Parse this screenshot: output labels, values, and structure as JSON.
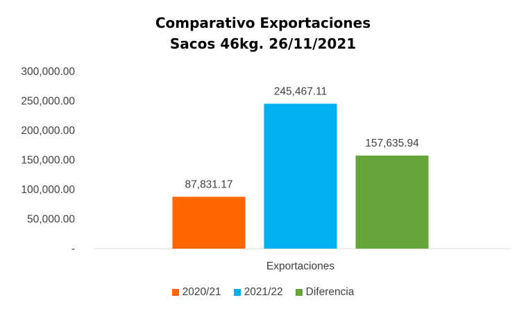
{
  "chart_data": {
    "type": "bar",
    "title": "Comparativo  Exportaciones",
    "subtitle": "Sacos 46kg. 26/11/2021",
    "categories": [
      "Exportaciones"
    ],
    "series": [
      {
        "name": "2020/21",
        "values": [
          87831.17
        ],
        "label": "87,831.17",
        "color": "#FF6600"
      },
      {
        "name": "2021/22",
        "values": [
          245467.11
        ],
        "label": "245,467.11",
        "color": "#00B0F0"
      },
      {
        "name": "Diferencia",
        "values": [
          157635.94
        ],
        "label": "157,635.94",
        "color": "#66A53A"
      }
    ],
    "ylim": [
      0,
      300000
    ],
    "yticks": [
      0,
      50000,
      100000,
      150000,
      200000,
      250000,
      300000
    ],
    "ytick_labels": [
      "-",
      "50,000.00",
      "100,000.00",
      "150,000.00",
      "200,000.00",
      "250,000.00",
      "300,000.00"
    ],
    "grid": false,
    "legend_position": "bottom"
  }
}
